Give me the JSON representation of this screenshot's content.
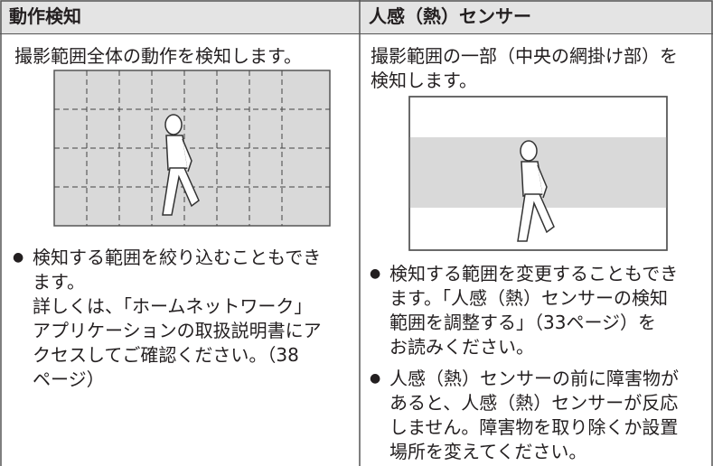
{
  "table": {
    "header": [
      "動作検知",
      "人感（熱）センサー"
    ],
    "left": {
      "intro": [
        "撮影範囲全体の動作を検知します。"
      ],
      "bullets": [
        [
          "検知する範囲を絞り込むこともでき",
          "ます。",
          "詳しくは、「ホームネットワーク」",
          "アプリケーションの取扱説明書にア",
          "クセスしてご確認ください。（38",
          "ページ）"
        ]
      ]
    },
    "right": {
      "intro": [
        "撮影範囲の一部（中央の網掛け部）を",
        "検知します。"
      ],
      "bullets": [
        [
          "検知する範囲を変更することもでき",
          "ます。「人感（熱）センサーの検知",
          "範囲を調整する」（33ページ）を",
          "お読みください。"
        ],
        [
          "人感（熱）センサーの前に障害物が",
          "あると、人感（熱）センサーが反応",
          "しません。障害物を取り除くか設置",
          "場所を変えてください。"
        ]
      ]
    }
  }
}
